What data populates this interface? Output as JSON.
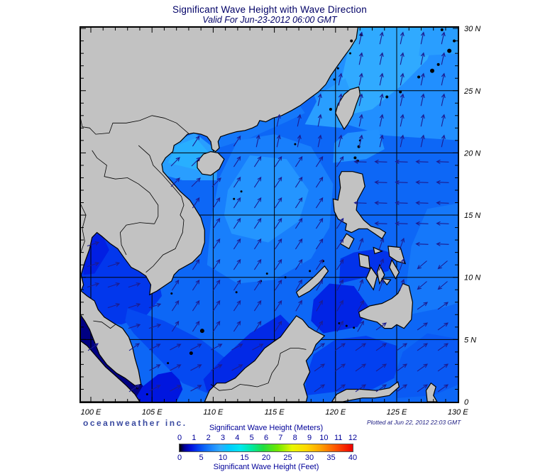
{
  "title": "Significant Wave Height with Wave Direction",
  "subtitle": "Valid For Jun-23-2012 06:00 GMT",
  "footer": {
    "logo": "oceanweather inc.",
    "plotted": "Plotted at Jun 22, 2012 22:03 GMT"
  },
  "axes": {
    "lon_values": [
      100,
      105,
      110,
      115,
      120,
      125,
      130
    ],
    "lon_labels": [
      "100 E",
      "105 E",
      "110 E",
      "115 E",
      "120 E",
      "125 E",
      "130 E"
    ],
    "lat_values": [
      0,
      5,
      10,
      15,
      20,
      25,
      30
    ],
    "lat_labels": [
      "0",
      "5 N",
      "10 N",
      "15 N",
      "20 N",
      "25 N",
      "30 N"
    ]
  },
  "legend": {
    "meters_label": "Significant Wave Height (Meters)",
    "feet_label": "Significant Wave Height (Feet)",
    "meters_ticks": [
      "0",
      "1",
      "2",
      "3",
      "4",
      "5",
      "6",
      "7",
      "8",
      "9",
      "10",
      "11",
      "12"
    ],
    "feet_ticks": [
      "0",
      "5",
      "10",
      "15",
      "20",
      "25",
      "30",
      "35",
      "40"
    ]
  },
  "colorbar": {
    "units": "meters",
    "range": [
      0,
      12
    ],
    "stops": [
      {
        "v": 0.0,
        "c": "#000000"
      },
      {
        "v": 0.35,
        "c": "#000099"
      },
      {
        "v": 0.8,
        "c": "#0011DD"
      },
      {
        "v": 1.3,
        "c": "#0340F0"
      },
      {
        "v": 1.8,
        "c": "#0E6BF7"
      },
      {
        "v": 2.3,
        "c": "#1F8CFF"
      },
      {
        "v": 2.8,
        "c": "#30AAFF"
      },
      {
        "v": 3.4,
        "c": "#00C8FF"
      },
      {
        "v": 4.2,
        "c": "#00E8F0"
      },
      {
        "v": 5.0,
        "c": "#00E8A0"
      },
      {
        "v": 5.8,
        "c": "#20DD40"
      },
      {
        "v": 6.8,
        "c": "#70E800"
      },
      {
        "v": 7.8,
        "c": "#E8F700"
      },
      {
        "v": 8.8,
        "c": "#FFD800"
      },
      {
        "v": 9.8,
        "c": "#FFA000"
      },
      {
        "v": 10.8,
        "c": "#FF5500"
      },
      {
        "v": 12.0,
        "c": "#EE0000"
      }
    ]
  },
  "wave_field": {
    "units": "m",
    "base_hs_m": 1.75,
    "regions": [
      {
        "name": "northeast_pacific_light",
        "hs_m": 2.35,
        "poly": [
          [
            116.8,
            30.4
          ],
          [
            130.3,
            30.4
          ],
          [
            130.3,
            21.0
          ],
          [
            124.0,
            21.4
          ],
          [
            120.5,
            22.4
          ],
          [
            118.5,
            24.0
          ],
          [
            117.5,
            26.5
          ]
        ]
      },
      {
        "name": "east_taiwan_bright",
        "hs_m": 2.8,
        "poly": [
          [
            120.8,
            23.0
          ],
          [
            123.0,
            23.5
          ],
          [
            125.5,
            25.5
          ],
          [
            127.5,
            27.5
          ],
          [
            128.6,
            30.4
          ],
          [
            121.5,
            30.4
          ],
          [
            120.4,
            25.5
          ]
        ]
      },
      {
        "name": "taiwan_strait_light",
        "hs_m": 2.6,
        "poly": [
          [
            117.5,
            22.3
          ],
          [
            120.5,
            22.0
          ],
          [
            121.6,
            24.0
          ],
          [
            120.8,
            26.0
          ],
          [
            118.8,
            24.8
          ]
        ]
      },
      {
        "name": "luzon_strait",
        "hs_m": 2.4,
        "poly": [
          [
            119.8,
            19.2
          ],
          [
            122.5,
            19.5
          ],
          [
            124.0,
            20.3
          ],
          [
            123.5,
            21.9
          ],
          [
            121.0,
            21.6
          ],
          [
            119.9,
            20.8
          ]
        ]
      },
      {
        "name": "china_coastal",
        "hs_m": 2.0,
        "poly": [
          [
            109.8,
            20.2
          ],
          [
            113.0,
            21.2
          ],
          [
            116.0,
            22.5
          ],
          [
            117.5,
            23.2
          ],
          [
            116.8,
            24.2
          ],
          [
            114.0,
            23.0
          ],
          [
            111.0,
            21.8
          ],
          [
            109.9,
            21.0
          ]
        ]
      },
      {
        "name": "gulf_of_tonkin",
        "hs_m": 2.6,
        "poly": [
          [
            105.7,
            18.3
          ],
          [
            107.5,
            17.8
          ],
          [
            110.3,
            17.8
          ],
          [
            110.3,
            20.2
          ],
          [
            108.5,
            21.6
          ],
          [
            106.8,
            20.9
          ],
          [
            105.8,
            19.8
          ]
        ]
      },
      {
        "name": "gulf_of_tonkin_inner",
        "hs_m": 2.9,
        "poly": [
          [
            106.3,
            19.2
          ],
          [
            108.8,
            18.6
          ],
          [
            110.0,
            19.6
          ],
          [
            108.6,
            21.2
          ],
          [
            107.0,
            20.6
          ]
        ]
      },
      {
        "name": "scs_central",
        "hs_m": 2.1,
        "poly": [
          [
            109.5,
            11.0
          ],
          [
            112.0,
            9.5
          ],
          [
            115.0,
            9.8
          ],
          [
            118.0,
            11.5
          ],
          [
            119.5,
            14.0
          ],
          [
            119.8,
            17.5
          ],
          [
            118.0,
            20.5
          ],
          [
            115.0,
            21.5
          ],
          [
            112.0,
            21.0
          ],
          [
            110.5,
            18.0
          ],
          [
            109.8,
            14.5
          ]
        ]
      },
      {
        "name": "scs_bright_core",
        "hs_m": 2.45,
        "poly": [
          [
            111.5,
            13.5
          ],
          [
            114.5,
            12.8
          ],
          [
            117.0,
            14.5
          ],
          [
            117.8,
            17.0
          ],
          [
            116.0,
            19.5
          ],
          [
            113.0,
            19.8
          ],
          [
            111.2,
            17.0
          ],
          [
            110.9,
            15.0
          ]
        ]
      },
      {
        "name": "gulf_of_thailand",
        "hs_m": 1.2,
        "poly": [
          [
            99.2,
            13.6
          ],
          [
            101.0,
            13.8
          ],
          [
            103.3,
            12.5
          ],
          [
            105.3,
            11.0
          ],
          [
            105.8,
            8.5
          ],
          [
            104.6,
            7.0
          ],
          [
            102.5,
            6.2
          ],
          [
            100.7,
            6.5
          ],
          [
            99.4,
            8.0
          ],
          [
            99.2,
            10.5
          ]
        ]
      },
      {
        "name": "gulf_of_thailand_inner",
        "hs_m": 0.95,
        "poly": [
          [
            99.5,
            13.3
          ],
          [
            100.9,
            13.5
          ],
          [
            101.5,
            12.2
          ],
          [
            100.3,
            10.3
          ],
          [
            99.4,
            10.2
          ],
          [
            99.3,
            12.0
          ]
        ]
      },
      {
        "name": "malacca_strait_calm",
        "hs_m": 0.3,
        "poly": [
          [
            99.0,
            7.0
          ],
          [
            100.2,
            6.0
          ],
          [
            101.8,
            4.3
          ],
          [
            103.2,
            2.6
          ],
          [
            104.4,
            1.1
          ],
          [
            104.6,
            0.0
          ],
          [
            103.3,
            0.0
          ],
          [
            102.0,
            1.8
          ],
          [
            100.5,
            3.4
          ],
          [
            99.0,
            5.1
          ]
        ]
      },
      {
        "name": "singapore_approach",
        "hs_m": 0.85,
        "poly": [
          [
            103.5,
            0.0
          ],
          [
            104.2,
            1.2
          ],
          [
            105.5,
            2.2
          ],
          [
            107.0,
            2.5
          ],
          [
            107.5,
            1.0
          ],
          [
            107.0,
            0.0
          ]
        ]
      },
      {
        "name": "sunda_shelf",
        "hs_m": 1.4,
        "poly": [
          [
            102.8,
            6.5
          ],
          [
            103.0,
            7.5
          ],
          [
            106.0,
            6.5
          ],
          [
            109.0,
            5.0
          ],
          [
            111.0,
            3.5
          ],
          [
            112.0,
            1.5
          ],
          [
            110.0,
            0.5
          ],
          [
            107.5,
            1.5
          ],
          [
            105.5,
            3.5
          ],
          [
            103.5,
            5.5
          ]
        ]
      },
      {
        "name": "nw_borneo_coast",
        "hs_m": 1.05,
        "poly": [
          [
            109.2,
            1.8
          ],
          [
            109.5,
            0.8
          ],
          [
            112.5,
            2.2
          ],
          [
            115.0,
            4.2
          ],
          [
            116.5,
            6.0
          ],
          [
            115.5,
            7.0
          ],
          [
            113.0,
            5.5
          ],
          [
            110.8,
            3.5
          ]
        ]
      },
      {
        "name": "sulu_sea",
        "hs_m": 1.0,
        "poly": [
          [
            119.0,
            5.5
          ],
          [
            121.8,
            6.0
          ],
          [
            122.8,
            7.5
          ],
          [
            121.5,
            9.3
          ],
          [
            119.5,
            9.5
          ],
          [
            118.2,
            8.2
          ],
          [
            118.0,
            6.5
          ]
        ]
      },
      {
        "name": "celebes_sea",
        "hs_m": 1.3,
        "poly": [
          [
            117.5,
            0.5
          ],
          [
            120.0,
            0.8
          ],
          [
            123.0,
            1.0
          ],
          [
            125.0,
            2.0
          ],
          [
            125.0,
            4.5
          ],
          [
            122.5,
            5.3
          ],
          [
            120.0,
            5.0
          ],
          [
            118.2,
            3.8
          ],
          [
            117.6,
            2.0
          ]
        ]
      },
      {
        "name": "molucca_sea",
        "hs_m": 1.6,
        "poly": [
          [
            125.0,
            0.3
          ],
          [
            128.0,
            0.5
          ],
          [
            130.3,
            1.5
          ],
          [
            130.3,
            5.0
          ],
          [
            127.5,
            5.5
          ],
          [
            125.5,
            4.0
          ],
          [
            124.8,
            2.0
          ]
        ]
      },
      {
        "name": "philippine_inner_seas",
        "hs_m": 1.15,
        "poly": [
          [
            120.3,
            9.5
          ],
          [
            122.5,
            10.0
          ],
          [
            124.3,
            10.5
          ],
          [
            125.0,
            11.8
          ],
          [
            123.5,
            12.3
          ],
          [
            121.5,
            12.0
          ],
          [
            120.4,
            11.5
          ]
        ]
      },
      {
        "name": "philippine_east_offshore",
        "hs_m": 2.0,
        "poly": [
          [
            126.0,
            7.0
          ],
          [
            128.5,
            7.5
          ],
          [
            130.3,
            8.0
          ],
          [
            130.3,
            16.0
          ],
          [
            127.5,
            15.5
          ],
          [
            126.2,
            12.5
          ],
          [
            125.8,
            9.5
          ]
        ]
      },
      {
        "name": "ne_corner_bright",
        "hs_m": 2.6,
        "poly": [
          [
            126.8,
            27.8
          ],
          [
            130.3,
            28.0
          ],
          [
            130.3,
            30.4
          ],
          [
            127.2,
            30.4
          ]
        ]
      }
    ]
  },
  "wave_directions": {
    "note": "bearing_deg is direction arrows point toward, clockwise from north",
    "regions": [
      {
        "name": "visayas_inner",
        "lon": [
          120.8,
          125.8
        ],
        "lat": [
          8.8,
          13.5
        ],
        "bearing_deg": 20
      },
      {
        "name": "east_of_mindanao_sw",
        "lon": [
          121.8,
          130.3
        ],
        "lat": [
          8.0,
          12.5
        ],
        "bearing_deg": 230
      },
      {
        "name": "philippine_sea_west",
        "lon": [
          120.8,
          130.3
        ],
        "lat": [
          12.5,
          20.8
        ],
        "bearing_deg": 272
      },
      {
        "name": "taiwan_and_ne_pacific",
        "lon": [
          112.0,
          130.3
        ],
        "lat": [
          20.8,
          30.2
        ],
        "bearing_deg": 12
      },
      {
        "name": "gulf_of_tonkin",
        "lon": [
          105.5,
          110.5
        ],
        "lat": [
          16.5,
          20.8
        ],
        "bearing_deg": 45
      },
      {
        "name": "gulf_of_thailand",
        "lon": [
          99.0,
          105.8
        ],
        "lat": [
          4.8,
          13.8
        ],
        "bearing_deg": 72
      },
      {
        "name": "malacca",
        "lon": [
          99.0,
          104.5
        ],
        "lat": [
          0.0,
          4.8
        ],
        "bearing_deg": 55
      },
      {
        "name": "sulu_sea",
        "lon": [
          116.5,
          122.5
        ],
        "lat": [
          4.5,
          9.5
        ],
        "bearing_deg": 30
      },
      {
        "name": "celebes_moluccas",
        "lon": [
          116.5,
          130.3
        ],
        "lat": [
          0.0,
          8.0
        ],
        "bearing_deg": 55
      },
      {
        "name": "southern_shelf",
        "lon": [
          104.5,
          116.5
        ],
        "lat": [
          0.0,
          4.8
        ],
        "bearing_deg": 62
      },
      {
        "name": "south_china_sea",
        "lon": [
          99.0,
          130.3
        ],
        "lat": [
          0.0,
          30.4
        ],
        "bearing_deg": 33
      }
    ]
  },
  "colors": {
    "land": "#C2C2C2",
    "coastline": "#000000",
    "grid": "#000000",
    "arrow": "#1c1c90",
    "frame": "#000000",
    "title_text": "#000066",
    "legend_text": "#000099"
  }
}
